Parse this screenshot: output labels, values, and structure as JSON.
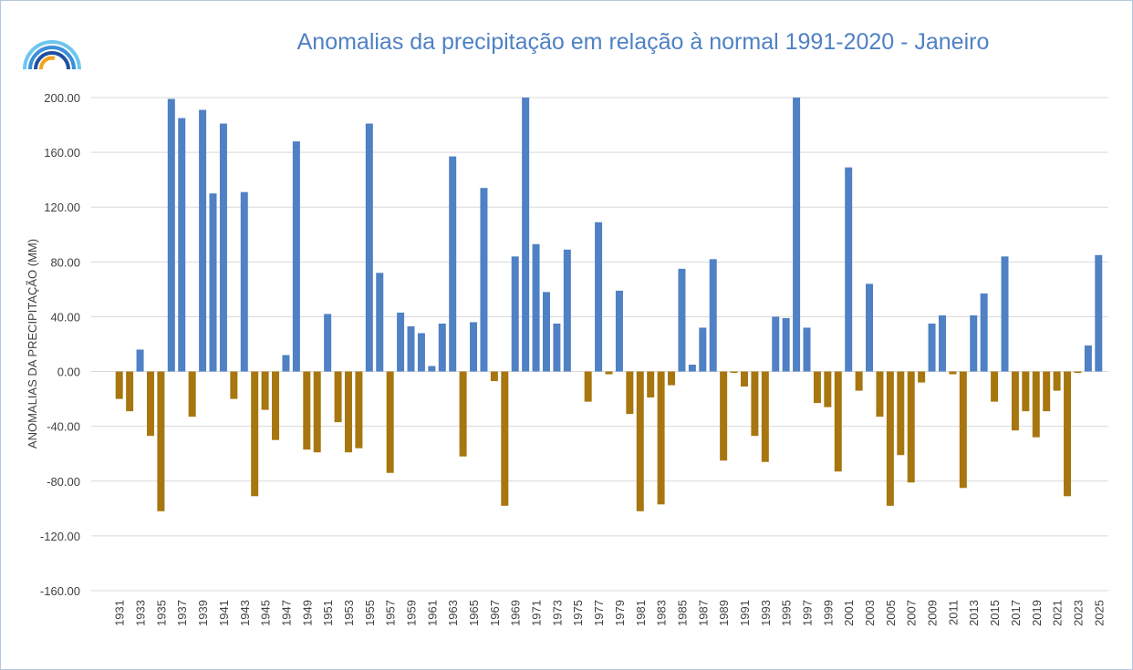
{
  "chart_data": {
    "type": "bar",
    "title": "Anomalias da precipitação em relação à normal 1991-2020 - Janeiro",
    "y_label": "ANOMALIAS DA PRECIPITAÇÃO (MM)",
    "categories": [
      "1931",
      null,
      "1933",
      null,
      "1935",
      null,
      "1937",
      null,
      "1939",
      null,
      "1941",
      null,
      "1943",
      null,
      "1945",
      null,
      "1947",
      null,
      "1949",
      null,
      "1951",
      null,
      "1953",
      null,
      "1955",
      null,
      "1957",
      null,
      "1959",
      null,
      "1961",
      null,
      "1963",
      null,
      "1965",
      null,
      "1967",
      null,
      "1969",
      null,
      "1971",
      null,
      "1973",
      null,
      "1975",
      null,
      "1977",
      null,
      "1979",
      null,
      "1981",
      null,
      "1983",
      null,
      "1985",
      null,
      "1987",
      null,
      "1989",
      null,
      "1991",
      null,
      "1993",
      null,
      "1995",
      null,
      "1997",
      null,
      "1999",
      null,
      "2001",
      null,
      "2003",
      null,
      "2005",
      null,
      "2007",
      null,
      "2009",
      null,
      "2011",
      null,
      "2013",
      null,
      "2015",
      null,
      "2017",
      null,
      "2019",
      null,
      "2021",
      null,
      "2023",
      null,
      "2025"
    ],
    "values": [
      -20,
      -29,
      16,
      -47,
      -102,
      199,
      185,
      -33,
      191,
      130,
      181,
      -20,
      131,
      -91,
      -28,
      -50,
      12,
      168,
      -57,
      -59,
      42,
      -37,
      -59,
      -56,
      181,
      72,
      -74,
      43,
      33,
      28,
      4,
      35,
      157,
      -62,
      36,
      134,
      -7,
      -98,
      84,
      200,
      93,
      58,
      35,
      89,
      0,
      -22,
      109,
      -2,
      59,
      -31,
      -102,
      -19,
      -97,
      -10,
      75,
      5,
      32,
      82,
      -65,
      -1,
      -11,
      -47,
      -66,
      40,
      39,
      200,
      32,
      -23,
      -26,
      -73,
      149,
      -14,
      64,
      -33,
      -98,
      -61,
      -81,
      -8,
      35,
      41,
      -2,
      -85,
      41,
      57,
      -22,
      84,
      -43,
      -29,
      -48,
      -29,
      -14,
      -91,
      -1,
      19,
      85
    ],
    "positive_color": "#4f81c4",
    "negative_color": "#a8760f",
    "ylim": [
      -160,
      200
    ],
    "yticks": [
      {
        "value": -160,
        "label": "-160.00"
      },
      {
        "value": -120,
        "label": "-120.00"
      },
      {
        "value": -80,
        "label": "-80.00"
      },
      {
        "value": -40,
        "label": "-40.00"
      },
      {
        "value": 0,
        "label": "0.00"
      },
      {
        "value": 40,
        "label": "40.00"
      },
      {
        "value": 80,
        "label": "80.00"
      },
      {
        "value": 120,
        "label": "120.00"
      },
      {
        "value": 160,
        "label": "160.00"
      },
      {
        "value": 200,
        "label": "200.00"
      }
    ],
    "grid": true
  }
}
